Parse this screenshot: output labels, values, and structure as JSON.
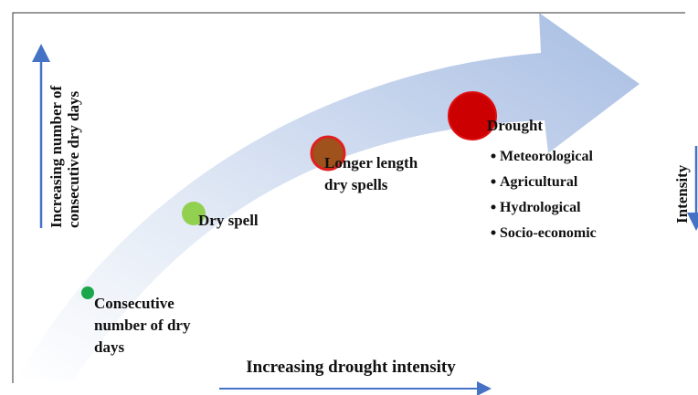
{
  "stages": [
    {
      "lines": [
        "Consecutive",
        "number of dry",
        "days"
      ]
    },
    {
      "lines": [
        "Dry spell"
      ]
    },
    {
      "lines": [
        "Longer length",
        "dry spells"
      ]
    },
    {
      "lines": [
        "Drought"
      ],
      "types": [
        "Meteorological",
        "Agricultural",
        "Hydrological",
        "Socio-economic"
      ]
    }
  ],
  "axes": {
    "left": [
      "Increasing number of",
      "consecutive dry days"
    ],
    "right": "Intensity",
    "bottom": "Increasing drought intensity"
  }
}
